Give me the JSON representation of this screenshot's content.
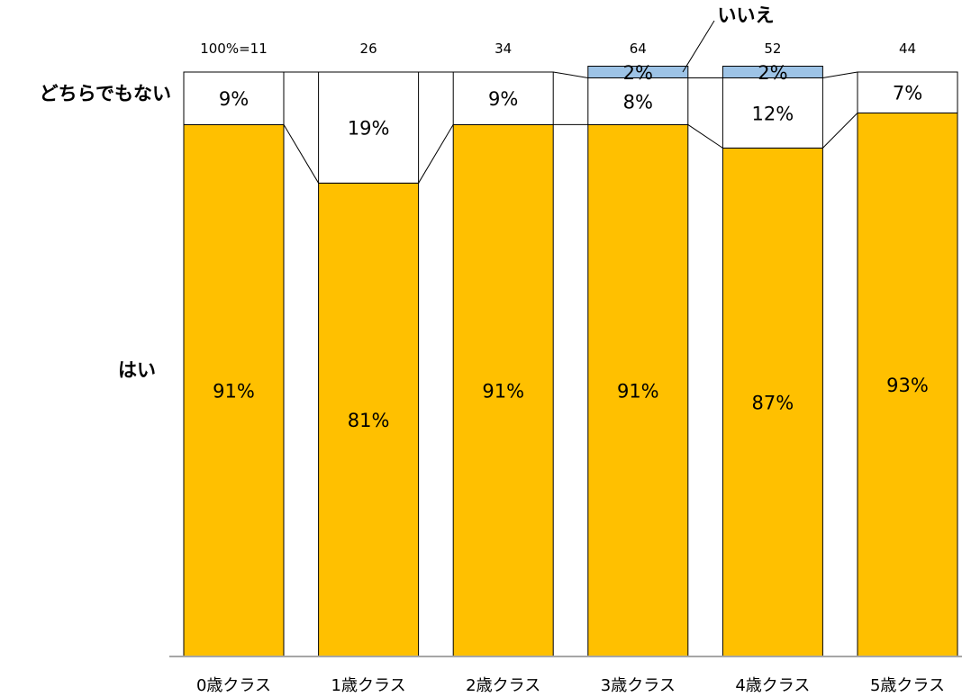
{
  "chart_data": {
    "type": "bar",
    "stacked": true,
    "normalized": true,
    "categories": [
      "0歳クラス",
      "1歳クラス",
      "2歳クラス",
      "3歳クラス",
      "4歳クラス",
      "5歳クラス"
    ],
    "totals": [
      "100%=11",
      "26",
      "34",
      "64",
      "52",
      "44"
    ],
    "series": [
      {
        "name": "はい",
        "values": [
          91,
          81,
          91,
          91,
          87,
          93
        ],
        "labels": [
          "91%",
          "81%",
          "91%",
          "91%",
          "87%",
          "93%"
        ],
        "color": "#FFC000"
      },
      {
        "name": "どちらでもない",
        "values": [
          9,
          19,
          9,
          8,
          12,
          7
        ],
        "labels": [
          "9%",
          "19%",
          "9%",
          "8%",
          "12%",
          "7%"
        ],
        "color": "#FFFFFF"
      },
      {
        "name": "いいえ",
        "values": [
          0,
          0,
          0,
          2,
          2,
          0
        ],
        "labels": [
          "",
          "",
          "",
          "2%",
          "2%",
          ""
        ],
        "color": "#9DC3E6"
      }
    ],
    "ylim": [
      0,
      100
    ],
    "legend": "direct-labels",
    "grid": false,
    "connector_lines": true
  }
}
